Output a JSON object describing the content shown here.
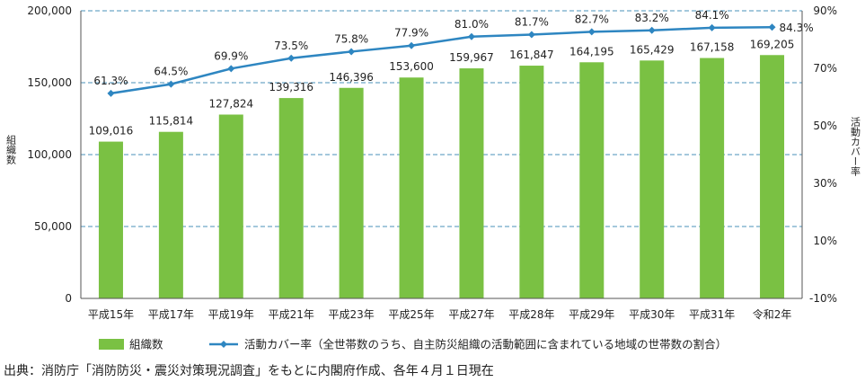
{
  "chart_data": {
    "type": "bar+line",
    "categories": [
      "平成15年",
      "平成17年",
      "平成19年",
      "平成21年",
      "平成23年",
      "平成25年",
      "平成27年",
      "平成28年",
      "平成29年",
      "平成30年",
      "平成31年",
      "令和2年"
    ],
    "series": [
      {
        "name": "組織数",
        "type": "bar",
        "axis": "left",
        "values": [
          109016,
          115814,
          127824,
          139316,
          146396,
          153600,
          159967,
          161847,
          164195,
          165429,
          167158,
          169205
        ],
        "labels": [
          "109,016",
          "115,814",
          "127,824",
          "139,316",
          "146,396",
          "153,600",
          "159,967",
          "161,847",
          "164,195",
          "165,429",
          "167,158",
          "169,205"
        ],
        "color": "#7ac143"
      },
      {
        "name": "活動カバー率（全世帯数のうち、自主防災組織の活動範囲に含まれている地域の世帯数の割合）",
        "type": "line",
        "axis": "right",
        "values": [
          61.3,
          64.5,
          69.9,
          73.5,
          75.8,
          77.9,
          81.0,
          81.7,
          82.7,
          83.2,
          84.1,
          84.3
        ],
        "labels": [
          "61.3%",
          "64.5%",
          "69.9%",
          "73.5%",
          "75.8%",
          "77.9%",
          "81.0%",
          "81.7%",
          "82.7%",
          "83.2%",
          "84.1%",
          "84.3%"
        ],
        "color": "#2e86c1"
      }
    ],
    "y_left": {
      "label": "組織数",
      "ylim": [
        0,
        200000
      ],
      "ticks": [
        0,
        50000,
        100000,
        150000,
        200000
      ],
      "tick_labels": [
        "0",
        "50,000",
        "100,000",
        "150,000",
        "200,000"
      ]
    },
    "y_right": {
      "label": "活動カバー率",
      "ylim": [
        -10,
        90
      ],
      "ticks": [
        -10,
        10,
        30,
        50,
        70,
        90
      ],
      "tick_labels": [
        "-10%",
        "10%",
        "30%",
        "50%",
        "70%",
        "90%"
      ]
    },
    "grid": "horizontal dashed",
    "legend": "bottom"
  },
  "source_note": "出典：消防庁「消防防災・震災対策現況調査」をもとに内閣府作成、各年４月１日現在"
}
